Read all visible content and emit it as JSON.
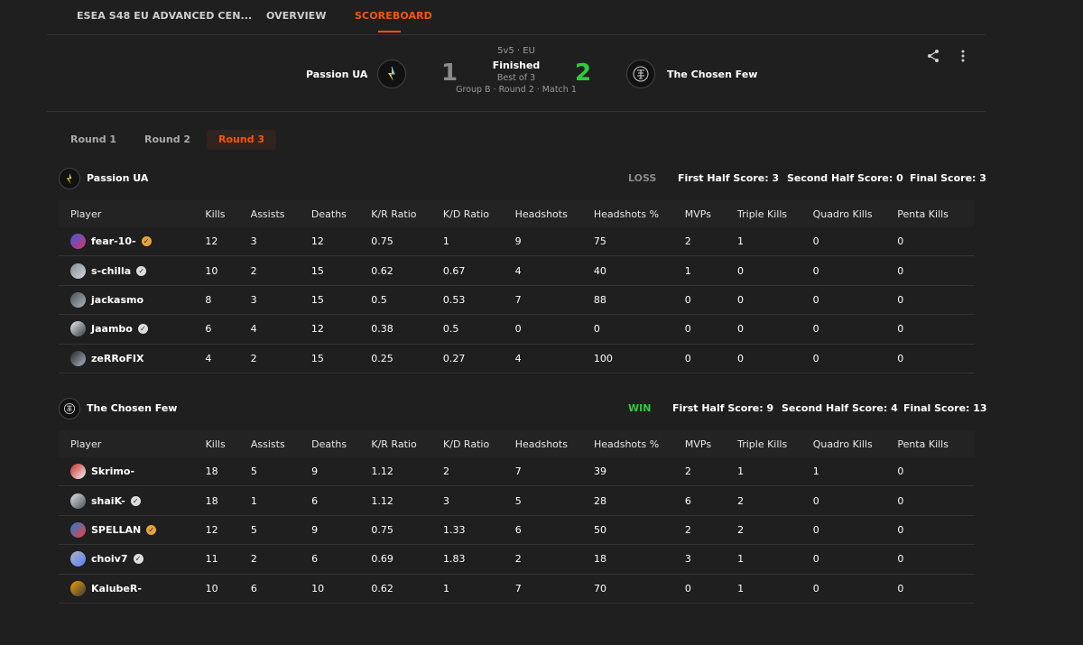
{
  "nav": {
    "tabs": [
      {
        "label": "ESEA S48 EU ADVANCED CEN..."
      },
      {
        "label": "OVERVIEW"
      },
      {
        "label": "SCOREBOARD"
      }
    ]
  },
  "match": {
    "format": "5v5 · EU",
    "status": "Finished",
    "best_of": "Best of 3",
    "stage": "Group B · Round 2 · Match 1",
    "team1": {
      "name": "Passion UA",
      "score": "1"
    },
    "team2": {
      "name": "The Chosen Few",
      "score": "2"
    },
    "colors": {
      "win": "#2ecc40",
      "loss": "#8a8a8a",
      "accent": "#ff5500"
    }
  },
  "rounds": [
    {
      "label": "Round 1"
    },
    {
      "label": "Round 2"
    },
    {
      "label": "Round 3"
    }
  ],
  "columns": [
    "Player",
    "Kills",
    "Assists",
    "Deaths",
    "K/R Ratio",
    "K/D Ratio",
    "Headshots",
    "Headshots %",
    "MVPs",
    "Triple Kills",
    "Quadro Kills",
    "Penta Kills"
  ],
  "teams": [
    {
      "name": "Passion UA",
      "result": "LOSS",
      "first_half": "First Half Score: 3",
      "second_half": "Second Half Score: 0",
      "final": "Final Score: 3",
      "players": [
        {
          "name": "fear-10-",
          "badge": "gold",
          "stats": [
            "12",
            "3",
            "12",
            "0.75",
            "1",
            "9",
            "75",
            "2",
            "1",
            "0",
            "0"
          ]
        },
        {
          "name": "s-chilla",
          "badge": "white",
          "stats": [
            "10",
            "2",
            "15",
            "0.62",
            "0.67",
            "4",
            "40",
            "1",
            "0",
            "0",
            "0"
          ]
        },
        {
          "name": "jackasmo",
          "badge": "",
          "stats": [
            "8",
            "3",
            "15",
            "0.5",
            "0.53",
            "7",
            "88",
            "0",
            "0",
            "0",
            "0"
          ]
        },
        {
          "name": "Jaambo",
          "badge": "white",
          "stats": [
            "6",
            "4",
            "12",
            "0.38",
            "0.5",
            "0",
            "0",
            "0",
            "0",
            "0",
            "0"
          ]
        },
        {
          "name": "zeRRoFIX",
          "badge": "",
          "stats": [
            "4",
            "2",
            "15",
            "0.25",
            "0.27",
            "4",
            "100",
            "0",
            "0",
            "0",
            "0"
          ]
        }
      ]
    },
    {
      "name": "The Chosen Few",
      "result": "WIN",
      "first_half": "First Half Score: 9",
      "second_half": "Second Half Score: 4",
      "final": "Final Score: 13",
      "players": [
        {
          "name": "Skrimo-",
          "badge": "",
          "stats": [
            "18",
            "5",
            "9",
            "1.12",
            "2",
            "7",
            "39",
            "2",
            "1",
            "1",
            "0"
          ]
        },
        {
          "name": "shaiK-",
          "badge": "white",
          "stats": [
            "18",
            "1",
            "6",
            "1.12",
            "3",
            "5",
            "28",
            "6",
            "2",
            "0",
            "0"
          ]
        },
        {
          "name": "SPELLAN",
          "badge": "gold",
          "stats": [
            "12",
            "5",
            "9",
            "0.75",
            "1.33",
            "6",
            "50",
            "2",
            "2",
            "0",
            "0"
          ]
        },
        {
          "name": "choiv7",
          "badge": "white",
          "stats": [
            "11",
            "2",
            "6",
            "0.69",
            "1.83",
            "2",
            "18",
            "3",
            "1",
            "0",
            "0"
          ]
        },
        {
          "name": "KalubeR-",
          "badge": "",
          "stats": [
            "10",
            "6",
            "10",
            "0.62",
            "1",
            "7",
            "70",
            "0",
            "1",
            "0",
            "0"
          ]
        }
      ]
    }
  ]
}
